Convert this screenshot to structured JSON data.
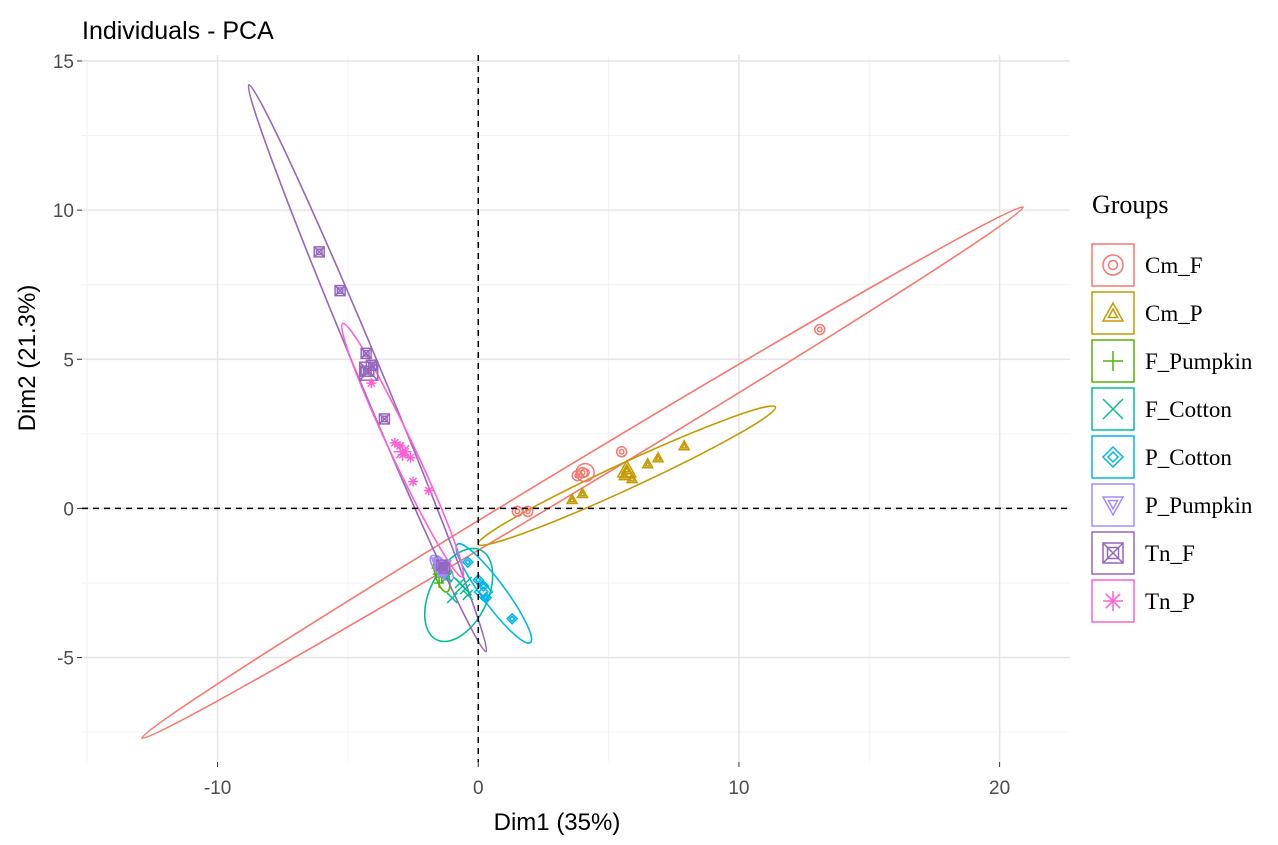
{
  "chart_data": {
    "type": "scatter",
    "title": "Individuals - PCA",
    "xlabel": "Dim1 (35%)",
    "ylabel": "Dim2 (21.3%)",
    "xlim": [
      -15.2,
      22.7
    ],
    "ylim": [
      -8.5,
      15.2
    ],
    "x_ticks": [
      -10,
      0,
      10,
      20
    ],
    "y_ticks": [
      -5,
      0,
      5,
      10,
      15
    ],
    "x_tick_labels": [
      "-10",
      "0",
      "10",
      "20"
    ],
    "y_tick_labels": [
      "-5",
      "0",
      "5",
      "10",
      "15"
    ],
    "grid": true,
    "reference_lines": [
      {
        "axis": "x",
        "value": 0,
        "style": "dashed"
      },
      {
        "axis": "y",
        "value": 0,
        "style": "dashed"
      }
    ],
    "legend": {
      "title": "Groups",
      "position": "right"
    },
    "series": [
      {
        "name": "Cm_F",
        "color": "#F8766D",
        "shape": "circle-dot",
        "points": [
          [
            1.5,
            -0.1
          ],
          [
            1.9,
            -0.1
          ],
          [
            3.8,
            1.1
          ],
          [
            4.0,
            1.2
          ],
          [
            5.5,
            1.9
          ],
          [
            13.1,
            6.0
          ]
        ],
        "centroid": [
          4.1,
          1.2
        ],
        "ellipse": [
          [
            20.9,
            10.1
          ],
          [
            -12.9,
            -7.7
          ]
        ],
        "ellipse_width": 0.5
      },
      {
        "name": "Cm_P",
        "color": "#C49A00",
        "shape": "triangle",
        "points": [
          [
            3.6,
            0.3
          ],
          [
            4.0,
            0.5
          ],
          [
            5.6,
            1.1
          ],
          [
            5.9,
            1.0
          ],
          [
            6.5,
            1.5
          ],
          [
            6.9,
            1.7
          ],
          [
            7.9,
            2.1
          ],
          [
            5.7,
            1.3
          ]
        ],
        "centroid": [
          5.7,
          1.3
        ],
        "ellipse": [
          [
            11.4,
            3.4
          ],
          [
            0.0,
            -1.2
          ]
        ],
        "ellipse_width": 0.5
      },
      {
        "name": "F_Pumpkin",
        "color": "#53B400",
        "shape": "plus",
        "points": [
          [
            -1.6,
            -2.0
          ],
          [
            -1.4,
            -2.3
          ],
          [
            -1.5,
            -2.5
          ],
          [
            -1.2,
            -2.1
          ]
        ],
        "centroid": [
          -1.4,
          -2.2
        ],
        "ellipse": [
          [
            -1.6,
            -1.6
          ],
          [
            -1.2,
            -2.8
          ]
        ],
        "ellipse_width": 0.25
      },
      {
        "name": "F_Cotton",
        "color": "#00C094",
        "shape": "x",
        "points": [
          [
            -1.0,
            -3.0
          ],
          [
            -0.5,
            -2.7
          ],
          [
            -0.7,
            -2.5
          ],
          [
            -0.4,
            -2.9
          ],
          [
            -1.2,
            -2.3
          ]
        ],
        "centroid": [
          -0.6,
          -2.6
        ],
        "ellipse": [
          [
            0.1,
            -1.4
          ],
          [
            -1.6,
            -4.4
          ]
        ],
        "ellipse_width": 1.1
      },
      {
        "name": "P_Cotton",
        "color": "#00B6EB",
        "shape": "diamond",
        "points": [
          [
            0.2,
            -2.6
          ],
          [
            0.3,
            -3.0
          ],
          [
            1.3,
            -3.7
          ],
          [
            0.0,
            -2.4
          ],
          [
            -0.4,
            -1.8
          ]
        ],
        "centroid": [
          0.2,
          -2.8
        ],
        "ellipse": [
          [
            -0.8,
            -1.2
          ],
          [
            2.0,
            -4.5
          ]
        ],
        "ellipse_width": 0.45
      },
      {
        "name": "P_Pumpkin",
        "color": "#A58AFF",
        "shape": "triangle-down",
        "points": [
          [
            -1.6,
            -1.8
          ],
          [
            -1.4,
            -2.0
          ],
          [
            -1.3,
            -2.2
          ],
          [
            -1.5,
            -2.1
          ]
        ],
        "centroid": [
          -1.4,
          -2.0
        ],
        "ellipse": [
          [
            -1.8,
            -1.6
          ],
          [
            -1.0,
            -2.4
          ]
        ],
        "ellipse_width": 0.25
      },
      {
        "name": "Tn_F",
        "color": "#9467BD",
        "shape": "square-x",
        "points": [
          [
            -6.1,
            8.6
          ],
          [
            -5.3,
            7.3
          ],
          [
            -4.3,
            5.2
          ],
          [
            -4.1,
            4.8
          ],
          [
            -3.6,
            3.0
          ],
          [
            -4.3,
            4.6
          ],
          [
            -1.4,
            -1.9
          ],
          [
            -1.3,
            -2.0
          ]
        ],
        "centroid": [
          -4.2,
          4.6
        ],
        "ellipse": [
          [
            -8.8,
            14.2
          ],
          [
            0.3,
            -4.8
          ]
        ],
        "ellipse_width": 0.45
      },
      {
        "name": "Tn_P",
        "color": "#FB61D7",
        "shape": "asterisk",
        "points": [
          [
            -4.1,
            4.2
          ],
          [
            -3.2,
            2.2
          ],
          [
            -3.0,
            2.1
          ],
          [
            -2.9,
            1.8
          ],
          [
            -2.6,
            1.7
          ],
          [
            -2.5,
            0.9
          ],
          [
            -1.9,
            0.6
          ],
          [
            -2.8,
            1.9
          ]
        ],
        "centroid": [
          -2.9,
          1.9
        ],
        "ellipse": [
          [
            -5.2,
            6.2
          ],
          [
            -0.6,
            -2.3
          ]
        ],
        "ellipse_width": 0.45
      }
    ]
  }
}
